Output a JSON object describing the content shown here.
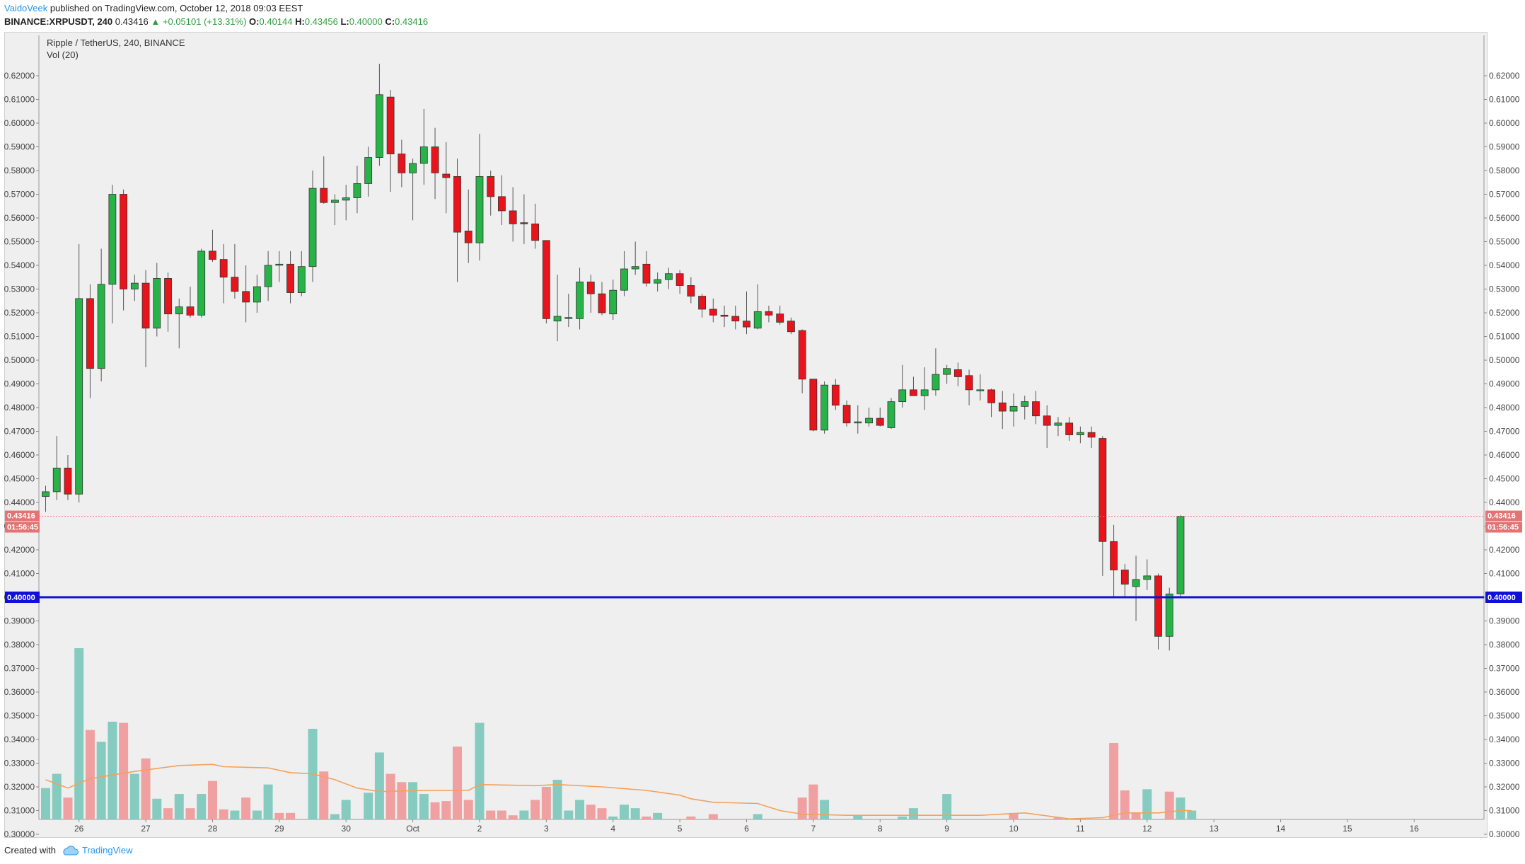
{
  "header": {
    "author": "VaidoVeek",
    "published": "published on TradingView.com, October 12, 2018 09:03 EEST",
    "symbol": "BINANCE:XRPUSDT, 240",
    "last": "0.43416",
    "change": "▲ +0.05101 (+13.31%)",
    "o_label": "O:",
    "o": "0.40144",
    "h_label": "H:",
    "h": "0.43456",
    "l_label": "L:",
    "l": "0.40000",
    "c_label": "C:",
    "c": "0.43416"
  },
  "legend": {
    "title": "Ripple / TetherUS, 240, BINANCE",
    "indicator": "Vol (20)"
  },
  "footer": {
    "created_with": "Created with",
    "brand": "TradingView"
  },
  "colors": {
    "up": "#27b348",
    "down": "#e8141b",
    "vol_up": "#86cbbf",
    "vol_down": "#f0a0a0",
    "ma": "#f5a05b",
    "level": "#1111d6",
    "price_tag": "#e57373"
  },
  "chart_data": {
    "type": "candlestick",
    "title": "Ripple / TetherUS, 240, BINANCE",
    "ylim": [
      0.296,
      0.625
    ],
    "y_ticks": [
      "0.62000",
      "0.61000",
      "0.60000",
      "0.59000",
      "0.58000",
      "0.57000",
      "0.56000",
      "0.55000",
      "0.54000",
      "0.53000",
      "0.52000",
      "0.51000",
      "0.50000",
      "0.49000",
      "0.48000",
      "0.47000",
      "0.46000",
      "0.45000",
      "0.44000",
      "0.43000",
      "0.42000",
      "0.41000",
      "0.40000",
      "0.39000",
      "0.38000",
      "0.37000",
      "0.36000",
      "0.35000",
      "0.34000",
      "0.33000",
      "0.32000",
      "0.31000",
      "0.30000"
    ],
    "x_labels": [
      {
        "label": "26",
        "bar": 3
      },
      {
        "label": "27",
        "bar": 9
      },
      {
        "label": "28",
        "bar": 15
      },
      {
        "label": "29",
        "bar": 21
      },
      {
        "label": "30",
        "bar": 27
      },
      {
        "label": "Oct",
        "bar": 33
      },
      {
        "label": "2",
        "bar": 39
      },
      {
        "label": "3",
        "bar": 45
      },
      {
        "label": "4",
        "bar": 51
      },
      {
        "label": "5",
        "bar": 57
      },
      {
        "label": "6",
        "bar": 63
      },
      {
        "label": "7",
        "bar": 69
      },
      {
        "label": "8",
        "bar": 75
      },
      {
        "label": "9",
        "bar": 81
      },
      {
        "label": "10",
        "bar": 87
      },
      {
        "label": "11",
        "bar": 93
      },
      {
        "label": "12",
        "bar": 99
      },
      {
        "label": "13",
        "bar": 105
      },
      {
        "label": "14",
        "bar": 111
      },
      {
        "label": "15",
        "bar": 117
      },
      {
        "label": "16",
        "bar": 123
      }
    ],
    "candles": [
      [
        0.4425,
        0.447,
        0.436,
        0.4445
      ],
      [
        0.4445,
        0.468,
        0.441,
        0.4545
      ],
      [
        0.4545,
        0.46,
        0.441,
        0.4435
      ],
      [
        0.4435,
        0.549,
        0.44,
        0.526
      ],
      [
        0.526,
        0.532,
        0.484,
        0.4965
      ],
      [
        0.4965,
        0.547,
        0.491,
        0.532
      ],
      [
        0.532,
        0.574,
        0.5155,
        0.57
      ],
      [
        0.57,
        0.572,
        0.521,
        0.53
      ],
      [
        0.53,
        0.536,
        0.525,
        0.5325
      ],
      [
        0.5325,
        0.538,
        0.497,
        0.5135
      ],
      [
        0.5135,
        0.541,
        0.51,
        0.5345
      ],
      [
        0.5345,
        0.537,
        0.512,
        0.5195
      ],
      [
        0.5195,
        0.526,
        0.505,
        0.5225
      ],
      [
        0.5225,
        0.531,
        0.518,
        0.519
      ],
      [
        0.519,
        0.547,
        0.518,
        0.546
      ],
      [
        0.546,
        0.555,
        0.5415,
        0.5425
      ],
      [
        0.5425,
        0.549,
        0.524,
        0.535
      ],
      [
        0.535,
        0.549,
        0.526,
        0.529
      ],
      [
        0.529,
        0.54,
        0.516,
        0.5245
      ],
      [
        0.5245,
        0.536,
        0.52,
        0.531
      ],
      [
        0.531,
        0.546,
        0.525,
        0.54
      ],
      [
        0.5405,
        0.546,
        0.533,
        0.5405
      ],
      [
        0.5405,
        0.546,
        0.524,
        0.5285
      ],
      [
        0.5285,
        0.546,
        0.527,
        0.5395
      ],
      [
        0.5395,
        0.58,
        0.533,
        0.5725
      ],
      [
        0.5725,
        0.586,
        0.566,
        0.5665
      ],
      [
        0.5665,
        0.57,
        0.557,
        0.5675
      ],
      [
        0.5675,
        0.574,
        0.559,
        0.5685
      ],
      [
        0.5685,
        0.582,
        0.562,
        0.5745
      ],
      [
        0.5745,
        0.59,
        0.569,
        0.5855
      ],
      [
        0.5855,
        0.625,
        0.582,
        0.612
      ],
      [
        0.611,
        0.614,
        0.571,
        0.587
      ],
      [
        0.587,
        0.593,
        0.573,
        0.579
      ],
      [
        0.579,
        0.585,
        0.559,
        0.583
      ],
      [
        0.583,
        0.606,
        0.574,
        0.59
      ],
      [
        0.59,
        0.598,
        0.568,
        0.579
      ],
      [
        0.5785,
        0.592,
        0.562,
        0.577
      ],
      [
        0.5775,
        0.585,
        0.533,
        0.554
      ],
      [
        0.5545,
        0.572,
        0.541,
        0.5495
      ],
      [
        0.5495,
        0.5955,
        0.542,
        0.5775
      ],
      [
        0.5775,
        0.58,
        0.561,
        0.569
      ],
      [
        0.569,
        0.578,
        0.557,
        0.563
      ],
      [
        0.563,
        0.573,
        0.55,
        0.5575
      ],
      [
        0.558,
        0.57,
        0.549,
        0.5575
      ],
      [
        0.5575,
        0.566,
        0.547,
        0.5505
      ],
      [
        0.5505,
        0.5505,
        0.5155,
        0.5175
      ],
      [
        0.5165,
        0.536,
        0.508,
        0.5185
      ],
      [
        0.518,
        0.528,
        0.514,
        0.518
      ],
      [
        0.5175,
        0.539,
        0.513,
        0.533
      ],
      [
        0.533,
        0.536,
        0.52,
        0.528
      ],
      [
        0.528,
        0.533,
        0.519,
        0.52
      ],
      [
        0.5195,
        0.534,
        0.517,
        0.5295
      ],
      [
        0.5295,
        0.546,
        0.527,
        0.5385
      ],
      [
        0.5385,
        0.55,
        0.536,
        0.5395
      ],
      [
        0.5405,
        0.546,
        0.531,
        0.5325
      ],
      [
        0.5325,
        0.537,
        0.529,
        0.534
      ],
      [
        0.534,
        0.539,
        0.53,
        0.5365
      ],
      [
        0.5365,
        0.538,
        0.528,
        0.5315
      ],
      [
        0.5315,
        0.535,
        0.524,
        0.527
      ],
      [
        0.527,
        0.528,
        0.518,
        0.5215
      ],
      [
        0.5215,
        0.526,
        0.516,
        0.519
      ],
      [
        0.519,
        0.523,
        0.514,
        0.5185
      ],
      [
        0.5185,
        0.523,
        0.513,
        0.5165
      ],
      [
        0.5165,
        0.529,
        0.511,
        0.514
      ],
      [
        0.5135,
        0.532,
        0.513,
        0.5205
      ],
      [
        0.5205,
        0.523,
        0.516,
        0.519
      ],
      [
        0.5195,
        0.523,
        0.515,
        0.516
      ],
      [
        0.5165,
        0.518,
        0.511,
        0.512
      ],
      [
        0.5125,
        0.513,
        0.486,
        0.492
      ],
      [
        0.492,
        0.492,
        0.47,
        0.4705
      ],
      [
        0.4705,
        0.491,
        0.469,
        0.4895
      ],
      [
        0.4895,
        0.492,
        0.479,
        0.481
      ],
      [
        0.481,
        0.483,
        0.472,
        0.4735
      ],
      [
        0.4735,
        0.481,
        0.469,
        0.474
      ],
      [
        0.4735,
        0.48,
        0.472,
        0.4755
      ],
      [
        0.4755,
        0.48,
        0.472,
        0.4725
      ],
      [
        0.4715,
        0.484,
        0.471,
        0.4825
      ],
      [
        0.4825,
        0.498,
        0.48,
        0.4875
      ],
      [
        0.4875,
        0.493,
        0.486,
        0.485
      ],
      [
        0.485,
        0.497,
        0.479,
        0.4875
      ],
      [
        0.4875,
        0.505,
        0.485,
        0.494
      ],
      [
        0.494,
        0.498,
        0.49,
        0.4965
      ],
      [
        0.496,
        0.499,
        0.489,
        0.493
      ],
      [
        0.4935,
        0.496,
        0.481,
        0.4875
      ],
      [
        0.4875,
        0.494,
        0.483,
        0.4875
      ],
      [
        0.4875,
        0.488,
        0.476,
        0.482
      ],
      [
        0.482,
        0.487,
        0.471,
        0.4785
      ],
      [
        0.4785,
        0.486,
        0.472,
        0.4805
      ],
      [
        0.4805,
        0.485,
        0.475,
        0.4825
      ],
      [
        0.4825,
        0.487,
        0.473,
        0.4765
      ],
      [
        0.4765,
        0.481,
        0.463,
        0.4725
      ],
      [
        0.4725,
        0.476,
        0.468,
        0.4735
      ],
      [
        0.4735,
        0.476,
        0.466,
        0.4685
      ],
      [
        0.4685,
        0.472,
        0.465,
        0.4695
      ],
      [
        0.4695,
        0.472,
        0.463,
        0.4675
      ],
      [
        0.467,
        0.468,
        0.409,
        0.4235
      ],
      [
        0.4235,
        0.4305,
        0.4,
        0.4115
      ],
      [
        0.4115,
        0.414,
        0.4,
        0.4055
      ],
      [
        0.4045,
        0.4175,
        0.39,
        0.4075
      ],
      [
        0.4075,
        0.416,
        0.403,
        0.409
      ],
      [
        0.409,
        0.41,
        0.378,
        0.3835
      ],
      [
        0.3835,
        0.404,
        0.3775,
        0.4014
      ],
      [
        0.40144,
        0.43456,
        0.4,
        0.43416
      ]
    ],
    "volumes": [
      [
        0.3195,
        1
      ],
      [
        0.3255,
        1
      ],
      [
        0.3155,
        0
      ],
      [
        0.3785,
        1
      ],
      [
        0.344,
        0
      ],
      [
        0.339,
        1
      ],
      [
        0.3475,
        1
      ],
      [
        0.347,
        0
      ],
      [
        0.3255,
        1
      ],
      [
        0.332,
        0
      ],
      [
        0.315,
        1
      ],
      [
        0.311,
        0
      ],
      [
        0.317,
        1
      ],
      [
        0.311,
        0
      ],
      [
        0.317,
        1
      ],
      [
        0.3225,
        0
      ],
      [
        0.3105,
        0
      ],
      [
        0.31,
        1
      ],
      [
        0.3155,
        0
      ],
      [
        0.31,
        1
      ],
      [
        0.321,
        1
      ],
      [
        0.309,
        0
      ],
      [
        0.309,
        0
      ],
      [
        0.3045,
        1
      ],
      [
        0.3445,
        1
      ],
      [
        0.3265,
        0
      ],
      [
        0.3085,
        1
      ],
      [
        0.3145,
        1
      ],
      [
        0.3065,
        1
      ],
      [
        0.3175,
        1
      ],
      [
        0.3345,
        1
      ],
      [
        0.3255,
        0
      ],
      [
        0.322,
        0
      ],
      [
        0.322,
        1
      ],
      [
        0.317,
        1
      ],
      [
        0.3135,
        0
      ],
      [
        0.314,
        0
      ],
      [
        0.337,
        0
      ],
      [
        0.3145,
        0
      ],
      [
        0.347,
        1
      ],
      [
        0.31,
        0
      ],
      [
        0.31,
        0
      ],
      [
        0.308,
        0
      ],
      [
        0.31,
        1
      ],
      [
        0.3145,
        0
      ],
      [
        0.32,
        0
      ],
      [
        0.323,
        1
      ],
      [
        0.31,
        1
      ],
      [
        0.3145,
        1
      ],
      [
        0.3125,
        0
      ],
      [
        0.311,
        0
      ],
      [
        0.3075,
        1
      ],
      [
        0.3125,
        1
      ],
      [
        0.311,
        1
      ],
      [
        0.3075,
        0
      ],
      [
        0.309,
        1
      ],
      [
        0.304,
        1
      ],
      [
        0.3065,
        0
      ],
      [
        0.3075,
        0
      ],
      [
        0.305,
        0
      ],
      [
        0.3085,
        0
      ],
      [
        0.3055,
        0
      ],
      [
        0.3065,
        0
      ],
      [
        0.3045,
        0
      ],
      [
        0.3085,
        1
      ],
      [
        0.303,
        0
      ],
      [
        0.303,
        0
      ],
      [
        0.3035,
        0
      ],
      [
        0.3155,
        0
      ],
      [
        0.321,
        0
      ],
      [
        0.3145,
        1
      ],
      [
        0.305,
        0
      ],
      [
        0.3055,
        0
      ],
      [
        0.308,
        1
      ],
      [
        0.3045,
        1
      ],
      [
        0.304,
        1
      ],
      [
        0.303,
        0
      ],
      [
        0.3075,
        1
      ],
      [
        0.311,
        1
      ],
      [
        0.3055,
        0
      ],
      [
        0.3055,
        0
      ],
      [
        0.317,
        1
      ],
      [
        0.306,
        1
      ],
      [
        0.303,
        0
      ],
      [
        0.305,
        0
      ],
      [
        0.3025,
        1
      ],
      [
        0.304,
        0
      ],
      [
        0.309,
        0
      ],
      [
        0.304,
        1
      ],
      [
        0.3035,
        1
      ],
      [
        0.304,
        1
      ],
      [
        0.307,
        0
      ],
      [
        0.303,
        1
      ],
      [
        0.304,
        1
      ],
      [
        0.304,
        1
      ],
      [
        0.3045,
        0
      ],
      [
        0.3385,
        0
      ],
      [
        0.3185,
        0
      ],
      [
        0.309,
        0
      ],
      [
        0.319,
        1
      ],
      [
        0.305,
        1
      ],
      [
        0.318,
        0
      ],
      [
        0.3155,
        1
      ],
      [
        0.31,
        1
      ]
    ],
    "volume_ma": [
      [
        0,
        0.323
      ],
      [
        2,
        0.3195
      ],
      [
        4,
        0.3235
      ],
      [
        8,
        0.3265
      ],
      [
        12,
        0.329
      ],
      [
        15,
        0.3295
      ],
      [
        16,
        0.3285
      ],
      [
        20,
        0.328
      ],
      [
        22,
        0.326
      ],
      [
        24,
        0.3255
      ],
      [
        26,
        0.323
      ],
      [
        28,
        0.3195
      ],
      [
        30,
        0.318
      ],
      [
        34,
        0.3185
      ],
      [
        38,
        0.3185
      ],
      [
        39,
        0.321
      ],
      [
        44,
        0.3205
      ],
      [
        46,
        0.321
      ],
      [
        50,
        0.32
      ],
      [
        54,
        0.3185
      ],
      [
        57,
        0.3165
      ],
      [
        58,
        0.315
      ],
      [
        60,
        0.3135
      ],
      [
        64,
        0.313
      ],
      [
        66,
        0.31
      ],
      [
        68,
        0.3085
      ],
      [
        72,
        0.308
      ],
      [
        80,
        0.308
      ],
      [
        84,
        0.308
      ],
      [
        88,
        0.309
      ],
      [
        92,
        0.3065
      ],
      [
        95,
        0.307
      ],
      [
        97,
        0.309
      ],
      [
        100,
        0.309
      ],
      [
        102,
        0.31
      ],
      [
        103,
        0.31
      ]
    ],
    "current_price": "0.43416",
    "countdown": "01:56:45",
    "horizontal_level": "0.40000"
  }
}
